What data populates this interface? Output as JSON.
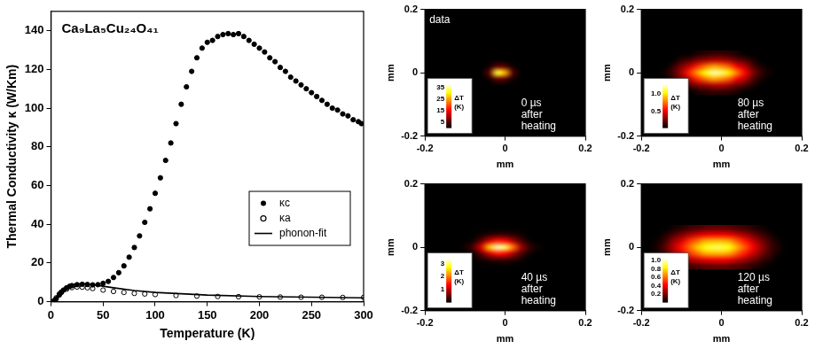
{
  "chart_data": [
    {
      "type": "scatter",
      "title": "Ca₉La₅Cu₂₄O₄₁",
      "x_label": "Temperature (K)",
      "y_label": "Thermal Conductivity κ (W/Km)",
      "xlim": [
        0,
        300
      ],
      "xticks": [
        0,
        50,
        100,
        150,
        200,
        250,
        300
      ],
      "ylim": [
        0,
        150
      ],
      "yticks": [
        0,
        20,
        40,
        60,
        80,
        100,
        120,
        140
      ],
      "grid": false,
      "legend": "right",
      "series": [
        {
          "name": "κc",
          "color": "#000000",
          "marker": "circle",
          "x": [
            3,
            5,
            8,
            10,
            12,
            15,
            18,
            20,
            25,
            30,
            35,
            40,
            45,
            50,
            55,
            60,
            65,
            70,
            75,
            80,
            85,
            90,
            95,
            100,
            105,
            110,
            115,
            120,
            125,
            130,
            135,
            140,
            145,
            150,
            155,
            160,
            165,
            170,
            175,
            180,
            185,
            190,
            195,
            200,
            205,
            210,
            215,
            220,
            225,
            230,
            235,
            240,
            245,
            250,
            255,
            260,
            265,
            270,
            275,
            280,
            285,
            290,
            295,
            298
          ],
          "values": [
            0.5,
            1.5,
            3.5,
            4.8,
            6,
            7.2,
            8,
            8.3,
            8.8,
            9,
            8.9,
            8.7,
            8.8,
            9.5,
            10.5,
            12.5,
            15,
            18.5,
            23,
            28,
            34,
            41,
            48,
            56,
            64,
            73,
            82,
            92,
            102,
            111,
            119,
            126,
            131,
            134,
            135,
            137,
            138,
            138.5,
            138,
            138.5,
            137,
            135,
            133,
            131,
            129,
            126,
            124,
            121,
            119,
            116,
            114,
            112,
            110,
            108,
            106,
            104,
            102,
            100,
            99,
            97,
            96,
            94,
            93,
            92
          ]
        },
        {
          "name": "κa",
          "color": "#000000",
          "marker": "open_circle",
          "x": [
            3,
            5,
            8,
            10,
            15,
            20,
            25,
            30,
            35,
            40,
            50,
            60,
            70,
            80,
            90,
            100,
            120,
            140,
            160,
            180,
            200,
            220,
            240,
            260,
            280,
            300
          ],
          "values": [
            0.5,
            2,
            4,
            5,
            6.5,
            7.3,
            7.6,
            7.5,
            7.2,
            6.8,
            6,
            5.3,
            4.8,
            4.3,
            4,
            3.7,
            3.2,
            2.9,
            2.7,
            2.6,
            2.5,
            2.4,
            2.3,
            2.3,
            2.2,
            2.2
          ]
        },
        {
          "name": "phonon-fit",
          "color": "#000000",
          "type": "line",
          "marker": "none",
          "line_style": "solid",
          "x": [
            2,
            5,
            10,
            15,
            20,
            25,
            30,
            35,
            40,
            50,
            60,
            80,
            100,
            150,
            200,
            250,
            300
          ],
          "values": [
            0.5,
            2.5,
            6,
            8,
            8.8,
            9.2,
            9.3,
            9.1,
            8.8,
            8,
            7.2,
            5.8,
            4.8,
            3.4,
            2.7,
            2.3,
            2.0
          ]
        }
      ]
    },
    {
      "type": "heatmap",
      "annotation": "data",
      "note": [
        "0 µs",
        "after",
        "heating"
      ],
      "x_label": "mm",
      "y_label": "mm",
      "xlim": [
        -0.2,
        0.2
      ],
      "xticks": [
        -0.2,
        0,
        0.2
      ],
      "ylim": [
        -0.2,
        0.2
      ],
      "yticks": [
        -0.2,
        0,
        0.2
      ],
      "x": [
        -0.18,
        -0.16,
        -0.14,
        -0.12,
        -0.1,
        -0.08,
        -0.06,
        -0.04,
        -0.02,
        0,
        0.02,
        0.04,
        0.06,
        0.08,
        0.1,
        0.12,
        0.14,
        0.16,
        0.18
      ],
      "y": [
        -0.06,
        -0.04,
        -0.02,
        0,
        0.02,
        0.04,
        0.06
      ],
      "values": [
        [
          0,
          0,
          0,
          0,
          0,
          0,
          0,
          0,
          0,
          0,
          0,
          0,
          0,
          0,
          0,
          0,
          0,
          0,
          0
        ],
        [
          0,
          0,
          0,
          0,
          0,
          0,
          0,
          0,
          0,
          0,
          0,
          0,
          0,
          0,
          0,
          0,
          0,
          0,
          0
        ],
        [
          0,
          0,
          0,
          0,
          0,
          0,
          0,
          1,
          6,
          5,
          1,
          0,
          0,
          0,
          0,
          0,
          0,
          0,
          0
        ],
        [
          0,
          0,
          0,
          0,
          0,
          0,
          0,
          6,
          32,
          26,
          5,
          0,
          0,
          0,
          0,
          0,
          0,
          0,
          0
        ],
        [
          0,
          0,
          0,
          0,
          0,
          0,
          0,
          1,
          6,
          5,
          1,
          0,
          0,
          0,
          0,
          0,
          0,
          0,
          0
        ],
        [
          0,
          0,
          0,
          0,
          0,
          0,
          0,
          0,
          0,
          0,
          0,
          0,
          0,
          0,
          0,
          0,
          0,
          0,
          0
        ],
        [
          0,
          0,
          0,
          0,
          0,
          0,
          0,
          0,
          0,
          0,
          0,
          0,
          0,
          0,
          0,
          0,
          0,
          0,
          0
        ]
      ],
      "colorbar": {
        "label": "ΔT (K)",
        "range": [
          0,
          38
        ],
        "ticks": [
          5,
          15,
          25,
          35
        ]
      }
    },
    {
      "type": "heatmap",
      "note": [
        "80 µs",
        "after",
        "heating"
      ],
      "x_label": "mm",
      "y_label": "mm",
      "xlim": [
        -0.2,
        0.2
      ],
      "xticks": [
        -0.2,
        0,
        0.2
      ],
      "ylim": [
        -0.2,
        0.2
      ],
      "yticks": [
        -0.2,
        0,
        0.2
      ],
      "x": [
        -0.18,
        -0.16,
        -0.14,
        -0.12,
        -0.1,
        -0.08,
        -0.06,
        -0.04,
        -0.02,
        0,
        0.02,
        0.04,
        0.06,
        0.08,
        0.1,
        0.12,
        0.14,
        0.16,
        0.18
      ],
      "y": [
        -0.06,
        -0.04,
        -0.02,
        0,
        0.02,
        0.04,
        0.06
      ],
      "values": [
        [
          0,
          0,
          0,
          0,
          0,
          0,
          0.05,
          0.08,
          0.1,
          0.1,
          0.08,
          0.05,
          0,
          0,
          0,
          0,
          0,
          0,
          0
        ],
        [
          0,
          0,
          0,
          0,
          0.1,
          0.15,
          0.25,
          0.3,
          0.35,
          0.35,
          0.3,
          0.2,
          0.15,
          0.05,
          0,
          0,
          0,
          0,
          0
        ],
        [
          0,
          0,
          0,
          0.1,
          0.25,
          0.4,
          0.6,
          0.75,
          0.85,
          0.8,
          0.7,
          0.5,
          0.35,
          0.15,
          0.05,
          0,
          0,
          0,
          0
        ],
        [
          0,
          0,
          0.05,
          0.15,
          0.35,
          0.6,
          0.85,
          1.05,
          1.2,
          1.15,
          1.0,
          0.75,
          0.5,
          0.25,
          0.1,
          0.03,
          0,
          0,
          0
        ],
        [
          0,
          0,
          0,
          0.1,
          0.25,
          0.4,
          0.6,
          0.75,
          0.85,
          0.8,
          0.7,
          0.5,
          0.35,
          0.15,
          0.05,
          0,
          0,
          0,
          0
        ],
        [
          0,
          0,
          0,
          0,
          0.1,
          0.15,
          0.25,
          0.3,
          0.35,
          0.35,
          0.3,
          0.2,
          0.15,
          0.05,
          0,
          0,
          0,
          0,
          0
        ],
        [
          0,
          0,
          0,
          0,
          0,
          0,
          0.05,
          0.08,
          0.1,
          0.1,
          0.08,
          0.05,
          0,
          0,
          0,
          0,
          0,
          0,
          0
        ]
      ],
      "colorbar": {
        "label": "ΔT (K)",
        "range": [
          0,
          1.3
        ],
        "ticks": [
          0.5,
          {
            "value": 1,
            "label": "1.0"
          }
        ]
      }
    },
    {
      "type": "heatmap",
      "note": [
        "40 µs",
        "after",
        "heating"
      ],
      "x_label": "mm",
      "y_label": "mm",
      "xlim": [
        -0.2,
        0.2
      ],
      "xticks": [
        -0.2,
        0,
        0.2
      ],
      "ylim": [
        -0.2,
        0.2
      ],
      "yticks": [
        -0.2,
        0,
        0.2
      ],
      "x": [
        -0.18,
        -0.16,
        -0.14,
        -0.12,
        -0.1,
        -0.08,
        -0.06,
        -0.04,
        -0.02,
        0,
        0.02,
        0.04,
        0.06,
        0.08,
        0.1,
        0.12,
        0.14,
        0.16,
        0.18
      ],
      "y": [
        -0.06,
        -0.04,
        -0.02,
        0,
        0.02,
        0.04,
        0.06
      ],
      "values": [
        [
          0,
          0,
          0,
          0,
          0,
          0,
          0,
          0,
          0,
          0,
          0,
          0,
          0,
          0,
          0,
          0,
          0,
          0,
          0
        ],
        [
          0,
          0,
          0,
          0,
          0,
          0,
          0.1,
          0.2,
          0.3,
          0.3,
          0.2,
          0.1,
          0,
          0,
          0,
          0,
          0,
          0,
          0
        ],
        [
          0,
          0,
          0,
          0,
          0,
          0.1,
          0.5,
          1.1,
          1.5,
          1.4,
          0.9,
          0.4,
          0.1,
          0,
          0,
          0,
          0,
          0,
          0
        ],
        [
          0,
          0,
          0,
          0,
          0.1,
          0.4,
          1.2,
          2.4,
          3.2,
          3.0,
          2.0,
          0.9,
          0.3,
          0.1,
          0,
          0,
          0,
          0,
          0
        ],
        [
          0,
          0,
          0,
          0,
          0,
          0.1,
          0.5,
          1.1,
          1.5,
          1.4,
          0.9,
          0.4,
          0.1,
          0,
          0,
          0,
          0,
          0,
          0
        ],
        [
          0,
          0,
          0,
          0,
          0,
          0,
          0.1,
          0.2,
          0.3,
          0.3,
          0.2,
          0.1,
          0,
          0,
          0,
          0,
          0,
          0,
          0
        ],
        [
          0,
          0,
          0,
          0,
          0,
          0,
          0,
          0,
          0,
          0,
          0,
          0,
          0,
          0,
          0,
          0,
          0,
          0,
          0
        ]
      ],
      "colorbar": {
        "label": "ΔT (K)",
        "range": [
          0,
          3.4
        ],
        "ticks": [
          1,
          2,
          3
        ]
      }
    },
    {
      "type": "heatmap",
      "note": [
        "120 µs",
        "after",
        "heating"
      ],
      "x_label": "mm",
      "y_label": "mm",
      "xlim": [
        -0.2,
        0.2
      ],
      "xticks": [
        -0.2,
        0,
        0.2
      ],
      "ylim": [
        -0.2,
        0.2
      ],
      "yticks": [
        -0.2,
        0,
        0.2
      ],
      "x": [
        -0.18,
        -0.16,
        -0.14,
        -0.12,
        -0.1,
        -0.08,
        -0.06,
        -0.04,
        -0.02,
        0,
        0.02,
        0.04,
        0.06,
        0.08,
        0.1,
        0.12,
        0.14,
        0.16,
        0.18
      ],
      "y": [
        -0.06,
        -0.04,
        -0.02,
        0,
        0.02,
        0.04,
        0.06
      ],
      "values": [
        [
          0,
          0,
          0,
          0.03,
          0.06,
          0.1,
          0.12,
          0.15,
          0.16,
          0.16,
          0.15,
          0.12,
          0.1,
          0.06,
          0.03,
          0,
          0,
          0,
          0
        ],
        [
          0,
          0,
          0.05,
          0.12,
          0.2,
          0.27,
          0.34,
          0.38,
          0.4,
          0.4,
          0.38,
          0.32,
          0.25,
          0.18,
          0.1,
          0.05,
          0,
          0,
          0
        ],
        [
          0,
          0.03,
          0.1,
          0.25,
          0.35,
          0.5,
          0.6,
          0.7,
          0.72,
          0.72,
          0.68,
          0.56,
          0.45,
          0.32,
          0.2,
          0.1,
          0.03,
          0,
          0
        ],
        [
          0,
          0.05,
          0.15,
          0.3,
          0.45,
          0.6,
          0.75,
          0.85,
          0.9,
          0.9,
          0.85,
          0.7,
          0.55,
          0.4,
          0.25,
          0.12,
          0.05,
          0,
          0
        ],
        [
          0,
          0.03,
          0.1,
          0.25,
          0.35,
          0.5,
          0.6,
          0.7,
          0.72,
          0.72,
          0.68,
          0.56,
          0.45,
          0.32,
          0.2,
          0.1,
          0.03,
          0,
          0
        ],
        [
          0,
          0,
          0.05,
          0.12,
          0.2,
          0.27,
          0.34,
          0.38,
          0.4,
          0.4,
          0.38,
          0.32,
          0.25,
          0.18,
          0.1,
          0.05,
          0,
          0,
          0
        ],
        [
          0,
          0,
          0,
          0.03,
          0.06,
          0.1,
          0.12,
          0.15,
          0.16,
          0.16,
          0.15,
          0.12,
          0.1,
          0.06,
          0.03,
          0,
          0,
          0,
          0
        ]
      ],
      "colorbar": {
        "label": "ΔT (K)",
        "range": [
          0,
          1.05
        ],
        "ticks": [
          0.2,
          0.4,
          0.6,
          0.8,
          {
            "value": 1,
            "label": "1.0"
          }
        ]
      }
    }
  ]
}
